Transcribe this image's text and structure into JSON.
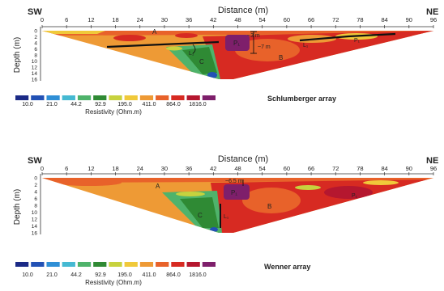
{
  "panels": [
    {
      "left_label": "SW",
      "right_label": "NE",
      "x_axis_title": "Distance (m)",
      "y_axis_title": "Depth (m)",
      "x_ticks": [
        "0",
        "6",
        "12",
        "18",
        "24",
        "30",
        "36",
        "42",
        "48",
        "54",
        "60",
        "66",
        "72",
        "78",
        "84",
        "90",
        "96"
      ],
      "y_ticks": [
        "0",
        "2",
        "4",
        "6",
        "8",
        "10",
        "12",
        "14",
        "16"
      ],
      "annotations": {
        "a": "A",
        "b": "B",
        "c": "C",
        "p1": "P₁",
        "p1_bar": "P₁",
        "l1": "L₁",
        "l1_bar": "L₁",
        "depth_top": "~3 m",
        "depth_bot": "~7 m"
      },
      "array_label": "Schlumberger array"
    },
    {
      "left_label": "SW",
      "right_label": "NE",
      "x_axis_title": "Distance (m)",
      "y_axis_title": "Depth (m)",
      "x_ticks": [
        "0",
        "6",
        "12",
        "18",
        "24",
        "30",
        "36",
        "42",
        "48",
        "54",
        "60",
        "66",
        "72",
        "78",
        "84",
        "90",
        "96"
      ],
      "y_ticks": [
        "0",
        "2",
        "4",
        "6",
        "8",
        "10",
        "12",
        "14",
        "16"
      ],
      "annotations": {
        "a": "A",
        "b": "B",
        "c": "C",
        "p1": "P₁",
        "p1_bar": "P₁",
        "l1_bar": "L₁",
        "depth_top": "~6.5 m"
      },
      "array_label": "Wenner array"
    }
  ],
  "legend": {
    "values": [
      "10.0",
      "21.0",
      "44.2",
      "92.9",
      "195.0",
      "411.0",
      "864.0",
      "1816.0"
    ],
    "title": "Resistivity (Ohm.m)",
    "colors": [
      "#1b2a86",
      "#2251b5",
      "#2f8fd6",
      "#45b9d2",
      "#4fb36b",
      "#2f8a34",
      "#c7d23e",
      "#f0c93a",
      "#ee9a35",
      "#e8622a",
      "#d72a22",
      "#b5172f",
      "#7e1f6b"
    ]
  }
}
